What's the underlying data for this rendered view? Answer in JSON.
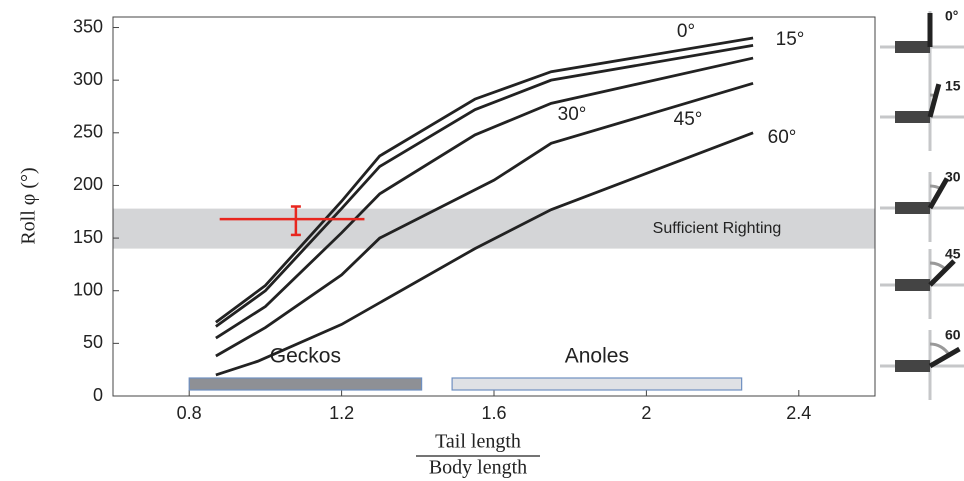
{
  "chart_data": {
    "type": "line",
    "ylabel": "Roll φ (°)",
    "xlabel_top": "Tail length",
    "xlabel_bottom": "Body length",
    "xlim": [
      0.6,
      2.6
    ],
    "xticks": [
      0.8,
      1.2,
      1.6,
      2,
      2.4
    ],
    "ylim": [
      0,
      360
    ],
    "yticks": [
      0,
      50,
      100,
      150,
      200,
      250,
      300,
      350
    ],
    "series": [
      {
        "name": "0°",
        "color": "#222222",
        "x": [
          0.87,
          1.0,
          1.2,
          1.3,
          1.55,
          1.75,
          2.28
        ],
        "values": [
          70,
          105,
          185,
          228,
          282,
          308,
          340
        ]
      },
      {
        "name": "15°",
        "color": "#222222",
        "x": [
          0.87,
          1.0,
          1.2,
          1.3,
          1.55,
          1.75,
          2.28
        ],
        "values": [
          66,
          100,
          178,
          218,
          272,
          300,
          333
        ]
      },
      {
        "name": "30°",
        "color": "#222222",
        "x": [
          0.87,
          1.0,
          1.2,
          1.3,
          1.55,
          1.75,
          2.28
        ],
        "values": [
          55,
          85,
          155,
          192,
          248,
          278,
          321
        ]
      },
      {
        "name": "45°",
        "color": "#222222",
        "x": [
          0.87,
          1.0,
          1.2,
          1.3,
          1.6,
          1.75,
          2.28
        ],
        "values": [
          38,
          65,
          115,
          150,
          205,
          240,
          297
        ]
      },
      {
        "name": "60°",
        "color": "#222222",
        "x": [
          0.87,
          0.98,
          1.2,
          1.55,
          1.75,
          2.28
        ],
        "values": [
          20,
          33,
          68,
          140,
          177,
          250
        ]
      }
    ],
    "band": {
      "label": "Sufficient Righting",
      "range": [
        140,
        178
      ],
      "color": "#d4d5d7"
    },
    "error_point": {
      "x": 1.08,
      "y": 168,
      "x_range": [
        0.88,
        1.26
      ],
      "y_range": [
        153,
        180
      ],
      "color": "#e8261e"
    },
    "ranges": [
      {
        "label": "Geckos",
        "x_range": [
          0.8,
          1.41
        ],
        "color": "#8e9095"
      },
      {
        "label": "Anoles",
        "x_range": [
          1.49,
          2.25
        ],
        "color": "#dfe1e5"
      }
    ],
    "insets": [
      {
        "value": 0,
        "label": "0°"
      },
      {
        "value": 15,
        "label": "15"
      },
      {
        "value": 30,
        "label": "30"
      },
      {
        "value": 45,
        "label": "45"
      },
      {
        "value": 60,
        "label": "60"
      }
    ]
  }
}
